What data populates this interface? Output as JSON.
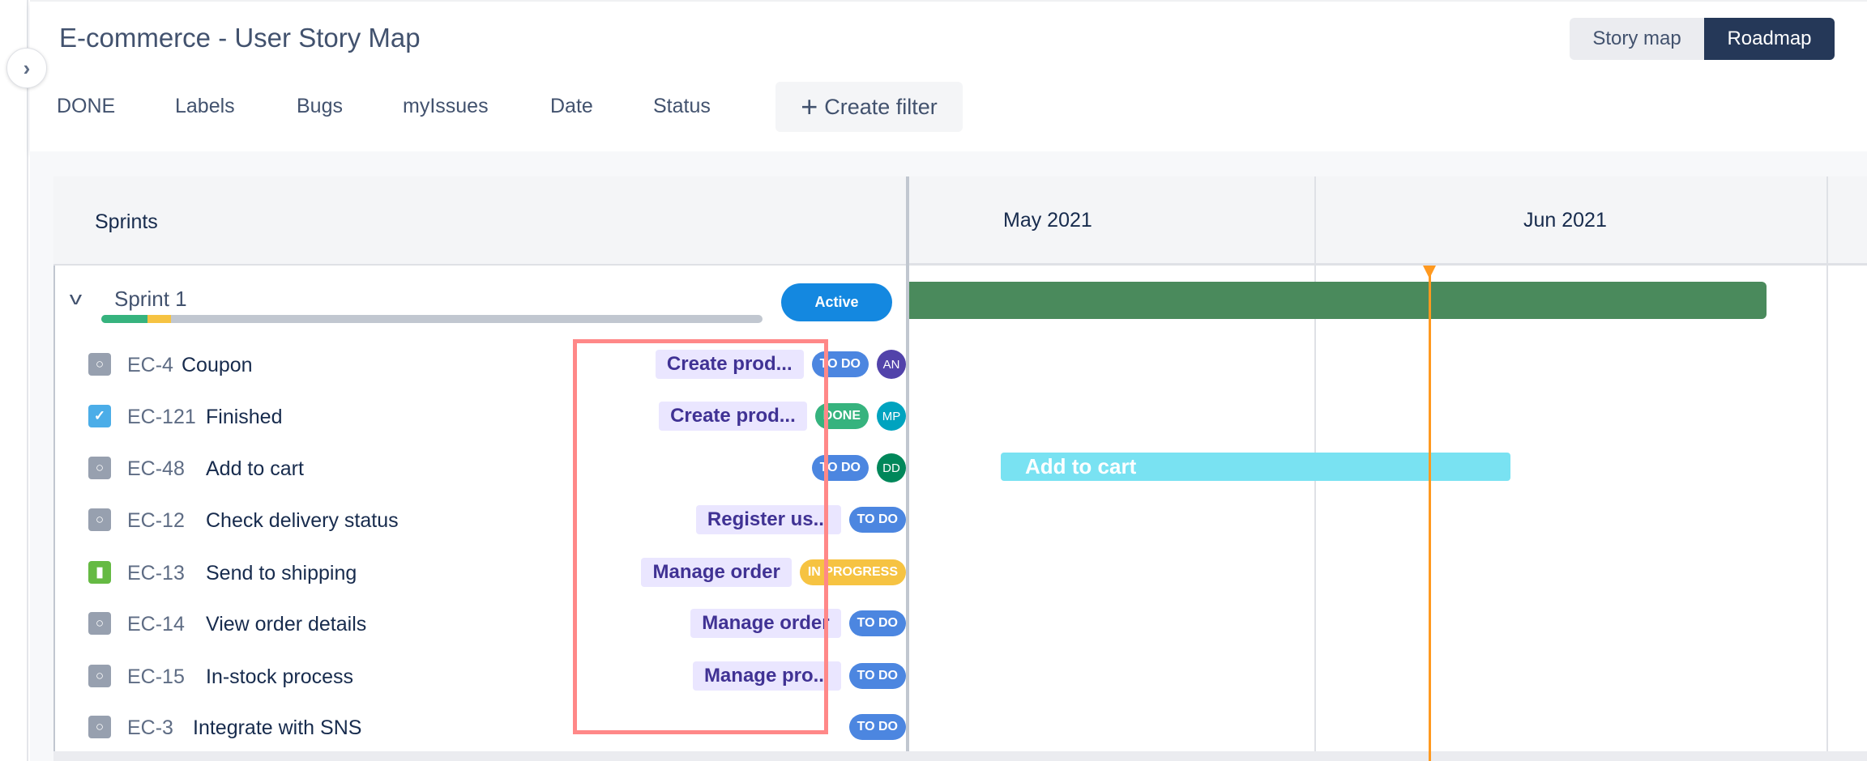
{
  "header": {
    "title": "E-commerce - User Story Map",
    "views": [
      "Story map",
      "Roadmap"
    ],
    "active_view": "Roadmap",
    "filters": [
      "DONE",
      "Labels",
      "Bugs",
      "myIssues",
      "Date",
      "Status"
    ],
    "create_filter": "Create filter"
  },
  "grid": {
    "left_header": "Sprints",
    "months": [
      "May 2021",
      "Jun 2021"
    ]
  },
  "sprint": {
    "name": "Sprint 1",
    "status": "Active",
    "progress": {
      "done": 0.07,
      "in_progress": 0.035
    },
    "bar_color": "#4a8a5c"
  },
  "issues": [
    {
      "key": "EC-4",
      "summary": "Coupon",
      "epic": "Create prod...",
      "status": "TO DO",
      "assignee": "AN",
      "type": "task"
    },
    {
      "key": "EC-121",
      "summary": "Finished",
      "epic": "Create prod...",
      "status": "DONE",
      "assignee": "MP",
      "type": "done"
    },
    {
      "key": "EC-48",
      "summary": "Add to cart",
      "epic": "",
      "status": "TO DO",
      "assignee": "DD",
      "type": "task"
    },
    {
      "key": "EC-12",
      "summary": "Check delivery status",
      "epic": "Register us...",
      "status": "TO DO",
      "assignee": "",
      "type": "task"
    },
    {
      "key": "EC-13",
      "summary": "Send to shipping",
      "epic": "Manage order",
      "status": "IN PROGRESS",
      "assignee": "",
      "type": "story"
    },
    {
      "key": "EC-14",
      "summary": "View order details",
      "epic": "Manage order",
      "status": "TO DO",
      "assignee": "",
      "type": "task"
    },
    {
      "key": "EC-15",
      "summary": "In-stock process",
      "epic": "Manage pro...",
      "status": "TO DO",
      "assignee": "",
      "type": "task"
    },
    {
      "key": "EC-3",
      "summary": "Integrate with SNS",
      "epic": "",
      "status": "TO DO",
      "assignee": "",
      "type": "task"
    }
  ],
  "timeline_bars": [
    {
      "label": "Add to cart",
      "color": "#79e2f2"
    }
  ],
  "colors": {
    "todo": "#4c86e0",
    "done": "#36b37e",
    "in_progress": "#f6c342",
    "avatar_AN": "#5243aa",
    "avatar_MP": "#00a3bf",
    "avatar_DD": "#00875a",
    "today": "#ff991f",
    "highlight": "#ff8888"
  }
}
